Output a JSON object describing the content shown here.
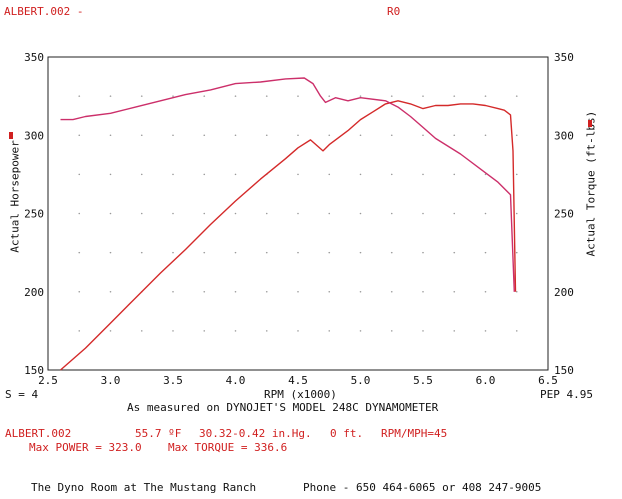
{
  "header": {
    "run_name": "ALBERT.002 -",
    "run_code": "R0"
  },
  "chart_data": {
    "type": "line",
    "xlabel": "RPM (x1000)",
    "ylabel_left": "Actual Horsepower",
    "ylabel_right": "Actual Torque (ft-lbs)",
    "xlim": [
      2.5,
      6.5
    ],
    "ylim": [
      150,
      350
    ],
    "x_ticks": [
      "2.5",
      "3.0",
      "3.5",
      "4.0",
      "4.5",
      "5.0",
      "5.5",
      "6.0",
      "6.5"
    ],
    "y_ticks_left": [
      "150",
      "200",
      "250",
      "300",
      "350"
    ],
    "y_ticks_right": [
      "150",
      "200",
      "250",
      "300",
      "350"
    ],
    "grid": true,
    "legend_marks": [
      "left",
      "right"
    ],
    "colors": {
      "power": "#d42a2a",
      "torque": "#cc2f6a",
      "legend": "#d02020"
    },
    "series": [
      {
        "id": "power",
        "x": [
          2.6,
          2.8,
          3.0,
          3.2,
          3.4,
          3.6,
          3.8,
          4.0,
          4.2,
          4.4,
          4.5,
          4.6,
          4.7,
          4.75,
          4.8,
          4.9,
          5.0,
          5.1,
          5.2,
          5.3,
          5.4,
          5.5,
          5.6,
          5.7,
          5.8,
          5.9,
          6.0,
          6.1,
          6.15,
          6.2,
          6.22,
          6.24
        ],
        "y": [
          150,
          164,
          180,
          196,
          212,
          227,
          243,
          258,
          272,
          285,
          292,
          297,
          290,
          294,
          297,
          303,
          310,
          315,
          320,
          322,
          320,
          317,
          319,
          319,
          320,
          320,
          319,
          317,
          316,
          313,
          290,
          200
        ]
      },
      {
        "id": "torque",
        "x": [
          2.6,
          2.7,
          2.8,
          3.0,
          3.2,
          3.4,
          3.6,
          3.8,
          4.0,
          4.2,
          4.4,
          4.55,
          4.62,
          4.68,
          4.72,
          4.8,
          4.9,
          5.0,
          5.2,
          5.3,
          5.4,
          5.5,
          5.6,
          5.8,
          6.0,
          6.1,
          6.2,
          6.23
        ],
        "y": [
          310,
          310,
          312,
          314,
          318,
          322,
          326,
          329,
          333,
          334,
          336,
          336.6,
          333,
          325,
          321,
          324,
          322,
          324,
          322,
          318,
          312,
          305,
          298,
          288,
          276,
          270,
          262,
          200
        ]
      }
    ],
    "footer": {
      "s_value": "S = 4",
      "pep_value": "PEP 4.95",
      "measured_note": "As measured on DYNOJET'S MODEL 248C DYNAMOMETER",
      "run_name": "ALBERT.002",
      "temperature": "55.7 ºF",
      "pressure": "30.32-0.42 in.Hg.",
      "altitude": "0 ft.",
      "rpm_mph": "RPM/MPH=45",
      "max_power": "Max POWER = 323.0",
      "max_torque": "Max TORQUE = 336.6",
      "shop_line": "The Dyno Room at The Mustang Ranch",
      "phone_line": "Phone - 650 464-6065 or 408 247-9005"
    }
  }
}
